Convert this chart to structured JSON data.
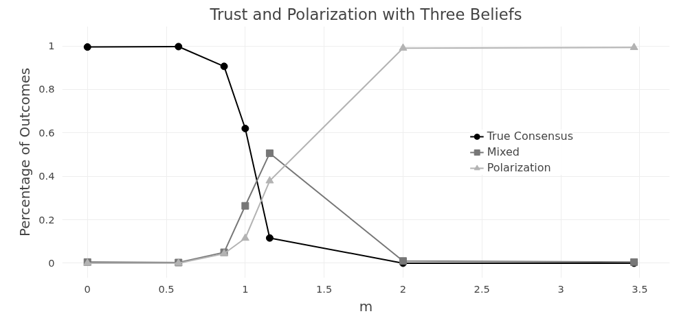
{
  "chart_data": {
    "type": "line",
    "title": "Trust and Polarization with Three Beliefs",
    "xlabel": "m",
    "ylabel": "Percentage of Outcomes",
    "x": [
      0,
      0.577,
      0.866,
      1,
      1.155,
      2,
      3.464
    ],
    "series": [
      {
        "name": "True Consensus",
        "color": "#000000",
        "marker": "circle",
        "values": [
          0.995,
          0.997,
          0.906,
          0.62,
          0.116,
          0,
          0
        ]
      },
      {
        "name": "Mixed",
        "color": "#777777",
        "marker": "square",
        "values": [
          0.005,
          0.003,
          0.05,
          0.264,
          0.506,
          0.01,
          0.005
        ]
      },
      {
        "name": "Polarization",
        "color": "#b3b3b3",
        "marker": "triangle",
        "values": [
          0,
          0,
          0.044,
          0.115,
          0.379,
          0.99,
          0.993
        ]
      }
    ],
    "xlim": [
      -0.16,
      3.69
    ],
    "ylim": [
      -0.068,
      1.09
    ],
    "xticks": [
      0,
      0.5,
      1,
      1.5,
      2,
      2.5,
      3,
      3.5
    ],
    "yticks": [
      0,
      0.2,
      0.4,
      0.6,
      0.8,
      1
    ],
    "grid": true,
    "legend": "right"
  }
}
